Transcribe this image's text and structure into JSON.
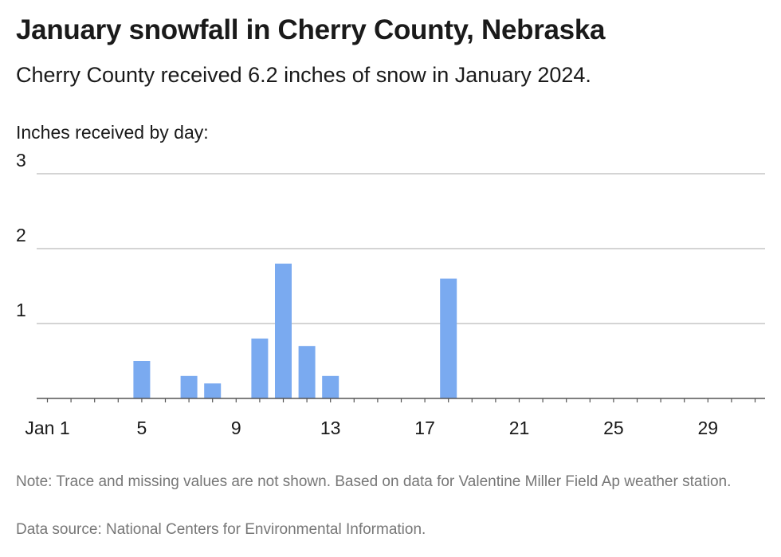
{
  "title": "January snowfall in Cherry County, Nebraska",
  "subtitle": "Cherry County received 6.2 inches of snow in January 2024.",
  "note": "Note: Trace and missing values are not shown. Based on data for Valentine Miller Field Ap weather station.",
  "source": "Data source: National Centers for Environmental Information.",
  "colors": {
    "bar": "#7aaaf0",
    "grid": "#bbbbbb",
    "axis": "#555555"
  },
  "chart_data": {
    "type": "bar",
    "ylabel": "Inches received by day:",
    "xlabel": "",
    "xlim": [
      1,
      31
    ],
    "ylim": [
      0,
      3
    ],
    "yticks": [
      1,
      2,
      3
    ],
    "xtick_values": [
      1,
      5,
      9,
      13,
      17,
      21,
      25,
      29
    ],
    "xtick_labels": [
      "Jan 1",
      "5",
      "9",
      "13",
      "17",
      "21",
      "25",
      "29"
    ],
    "grid": true,
    "series": [
      {
        "days": [
          5,
          7,
          8,
          10,
          11,
          12,
          13,
          18
        ],
        "values": [
          0.5,
          0.3,
          0.2,
          0.8,
          1.8,
          0.7,
          0.3,
          1.6
        ]
      }
    ]
  }
}
